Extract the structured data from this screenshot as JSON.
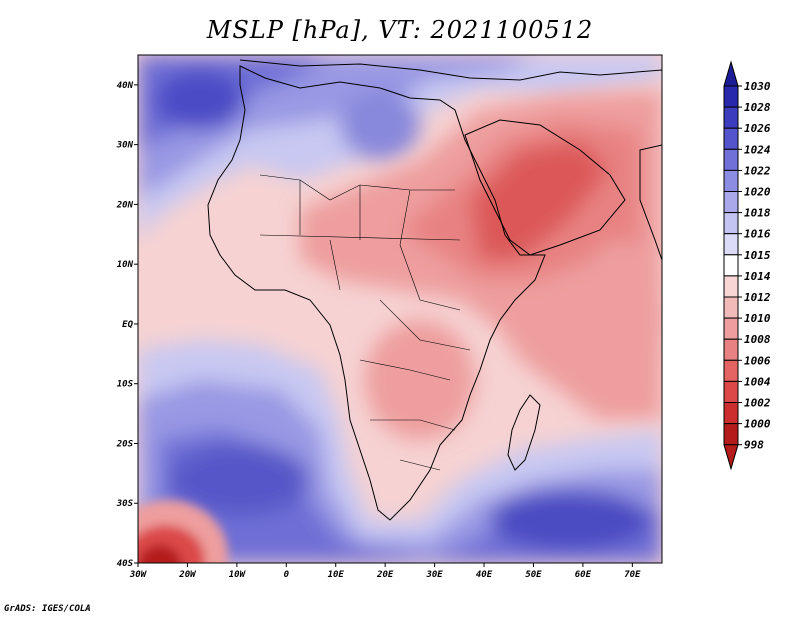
{
  "title": "MSLP [hPa], VT: 2021100512",
  "credit": "GrADS: IGES/COLA",
  "map": {
    "lon_range": [
      -30,
      76
    ],
    "lat_range": [
      -40,
      45
    ],
    "lon_ticks": [
      {
        "lon": -30,
        "label": "30W"
      },
      {
        "lon": -20,
        "label": "20W"
      },
      {
        "lon": -10,
        "label": "10W"
      },
      {
        "lon": 0,
        "label": "0"
      },
      {
        "lon": 10,
        "label": "10E"
      },
      {
        "lon": 20,
        "label": "20E"
      },
      {
        "lon": 30,
        "label": "30E"
      },
      {
        "lon": 40,
        "label": "40E"
      },
      {
        "lon": 50,
        "label": "50E"
      },
      {
        "lon": 60,
        "label": "60E"
      },
      {
        "lon": 70,
        "label": "70E"
      }
    ],
    "lat_ticks": [
      {
        "lat": 40,
        "label": "40N"
      },
      {
        "lat": 30,
        "label": "30N"
      },
      {
        "lat": 20,
        "label": "20N"
      },
      {
        "lat": 10,
        "label": "10N"
      },
      {
        "lat": 0,
        "label": "EQ"
      },
      {
        "lat": -10,
        "label": "10S"
      },
      {
        "lat": -20,
        "label": "20S"
      },
      {
        "lat": -30,
        "label": "30S"
      },
      {
        "lat": -40,
        "label": "40S"
      }
    ]
  },
  "colorbar": {
    "levels": [
      "998",
      "1000",
      "1002",
      "1004",
      "1006",
      "1008",
      "1010",
      "1012",
      "1014",
      "1015",
      "1016",
      "1018",
      "1020",
      "1022",
      "1024",
      "1026",
      "1028",
      "1030"
    ],
    "colors": [
      "#b41c1c",
      "#cc2e2e",
      "#dc4848",
      "#e46464",
      "#e88282",
      "#ee9e9e",
      "#f3baba",
      "#f8d6d6",
      "#ffffff",
      "#dcdcf8",
      "#c4c4f2",
      "#a8a8ea",
      "#8c8ce2",
      "#7070d8",
      "#5454cc",
      "#3c3cbe",
      "#2828ac",
      "#1c1c96"
    ]
  },
  "pressure_fields": {
    "high_north_atlantic_azores": "1024",
    "high_south_atlantic": "1026",
    "high_south_indian": "1026",
    "low_arabia_sudan": "1004",
    "low_sw_corner": "1000"
  }
}
